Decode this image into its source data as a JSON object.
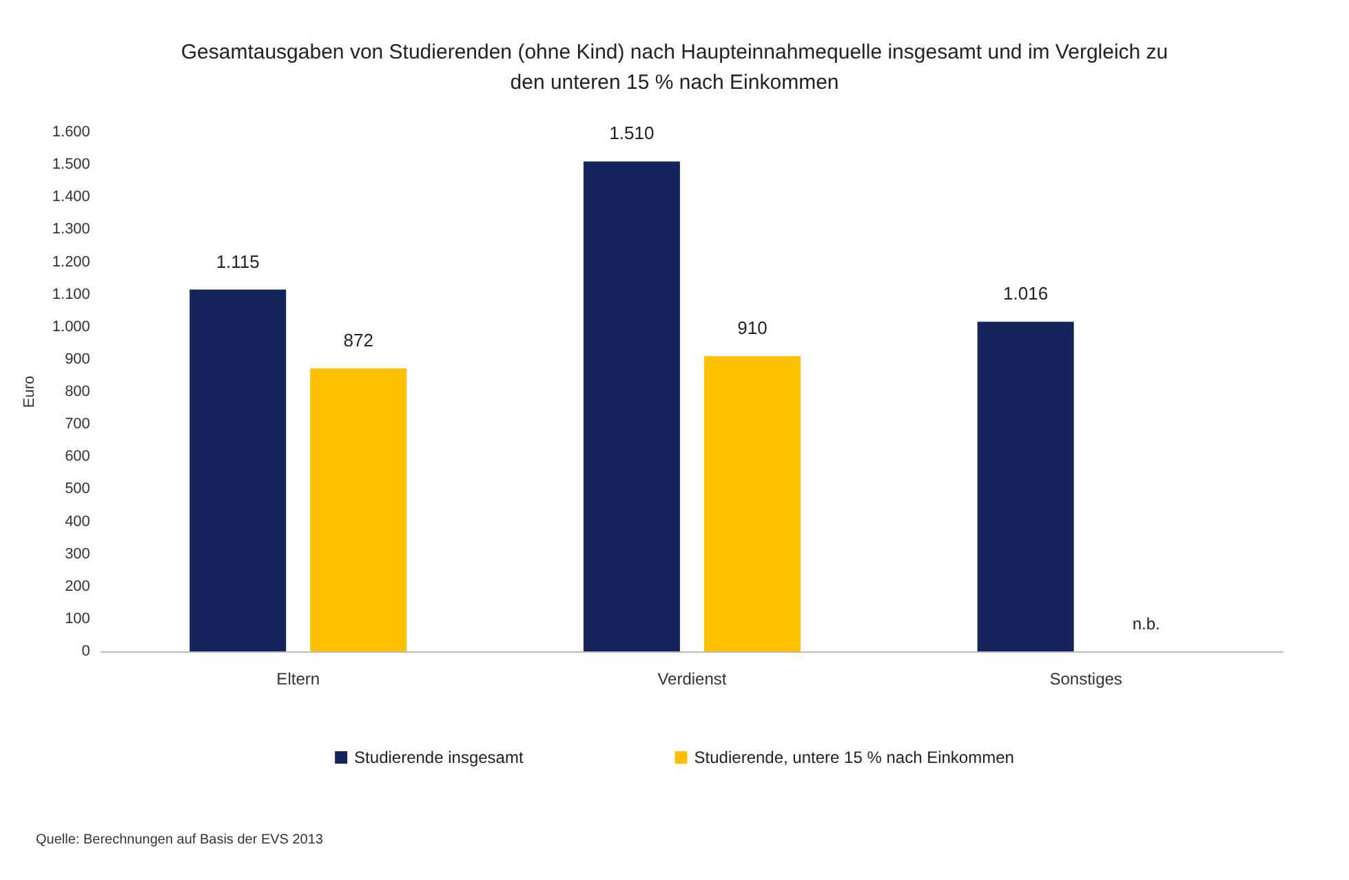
{
  "chart_data": {
    "type": "bar",
    "title": "Gesamtausgaben von Studierenden (ohne Kind) nach Haupteinnahmequelle insgesamt und im Vergleich zu\nden unteren 15 % nach Einkommen",
    "ylabel": "Euro",
    "categories": [
      "Eltern",
      "Verdienst",
      "Sonstiges"
    ],
    "series": [
      {
        "name": "Studierende insgesamt",
        "color": "#14245c",
        "values": [
          1115,
          1510,
          1016
        ],
        "value_labels": [
          "1.115",
          "1.510",
          "1.016"
        ]
      },
      {
        "name": "Studierende, untere 15 % nach Einkommen",
        "color": "#ffc000",
        "values": [
          872,
          910,
          null
        ],
        "value_labels": [
          "872",
          "910",
          "n.b."
        ]
      }
    ],
    "ylim": [
      0,
      1600
    ],
    "yticks": [
      0,
      100,
      200,
      300,
      400,
      500,
      600,
      700,
      800,
      900,
      {
        "value": 1000,
        "label": "1.000"
      },
      {
        "value": 1100,
        "label": "1.100"
      },
      {
        "value": 1200,
        "label": "1.200"
      },
      {
        "value": 1300,
        "label": "1.300"
      },
      {
        "value": 1400,
        "label": "1.400"
      },
      {
        "value": 1500,
        "label": "1.500"
      },
      {
        "value": 1600,
        "label": "1.600"
      }
    ],
    "grid": false,
    "legend": "bottom",
    "annotations": [
      "Quelle: Berechnungen auf Basis der EVS 2013"
    ]
  }
}
